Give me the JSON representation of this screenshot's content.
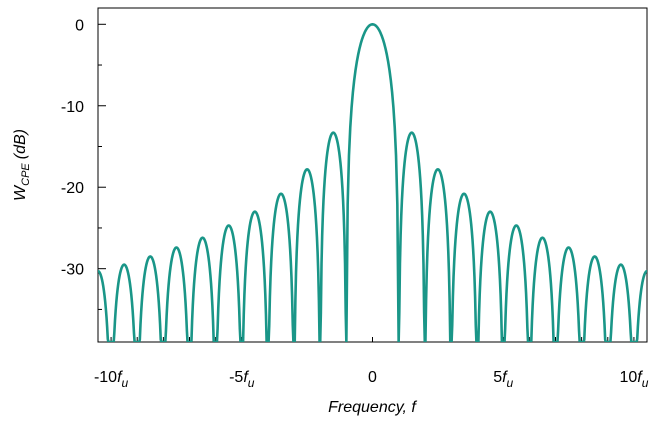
{
  "chart_data": {
    "type": "line",
    "xlabel": "Frequency, f",
    "ylabel": "W_CPE (dB)",
    "ylabel_main": "W",
    "ylabel_sub": "CPE",
    "ylabel_unit": "(dB)",
    "xlim": [
      -10.5,
      10.5
    ],
    "ylim": [
      -39,
      2
    ],
    "y_ticks": [
      0,
      -10,
      -20,
      -30
    ],
    "y_tick_labels": [
      "0",
      "-10",
      "-20",
      "-30"
    ],
    "x_ticks": [
      {
        "value": -10,
        "label": "-10",
        "unit": "u"
      },
      {
        "value": -5,
        "label": "-5",
        "unit": "u"
      },
      {
        "value": 0,
        "label": "0",
        "unit": ""
      },
      {
        "value": 5,
        "label": "5",
        "unit": "u"
      },
      {
        "value": 10,
        "label": "10",
        "unit": "u"
      }
    ],
    "grid": false,
    "line_color": "#1a9688",
    "series": [
      {
        "description": "main lobe at f=0 and sidelobes separated by nulls at |f| = 1, 2, ..., 10 (units of f_u)",
        "main_lobe_peak": 0,
        "null_positions": [
          1,
          2,
          3,
          4,
          5,
          6,
          7,
          8,
          9,
          10
        ],
        "sidelobe_peaks_db": [
          -13.3,
          -17.8,
          -20.8,
          -23.0,
          -24.7,
          -26.2,
          -27.4,
          -28.5,
          -29.5
        ]
      }
    ]
  }
}
